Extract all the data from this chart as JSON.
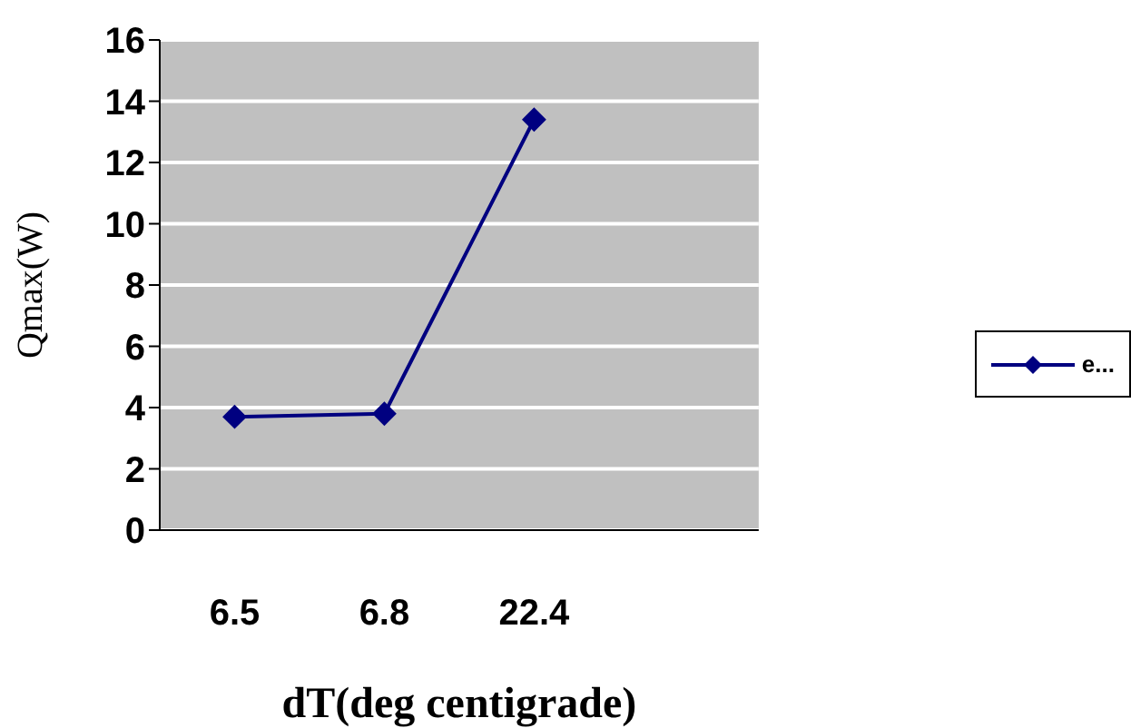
{
  "chart_data": {
    "type": "line",
    "xlabel": "dT(deg centigrade)",
    "ylabel": "Qmax(W)",
    "categories": [
      "6.5",
      "6.8",
      "22.4",
      null
    ],
    "series": [
      {
        "name": "e...",
        "color": "#000080",
        "values": [
          3.7,
          3.8,
          13.4,
          null
        ]
      }
    ],
    "ylim": [
      0,
      16
    ],
    "yticks": [
      0,
      2,
      4,
      6,
      8,
      10,
      12,
      14,
      16
    ],
    "grid": "y",
    "legend": "right",
    "marker": "diamond",
    "line_style": "solid"
  }
}
